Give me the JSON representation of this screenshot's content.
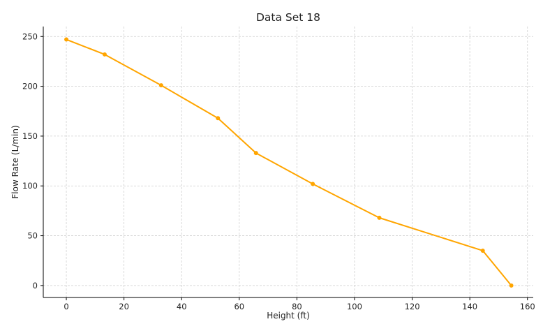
{
  "chart_data": {
    "type": "line",
    "title": "Data Set 18",
    "xlabel": "Height (ft)",
    "ylabel": "Flow Rate (L/min)",
    "xlim": [
      -8,
      162
    ],
    "ylim": [
      -12,
      260
    ],
    "xticks": [
      0,
      20,
      40,
      60,
      80,
      100,
      120,
      140,
      160
    ],
    "yticks": [
      0,
      50,
      100,
      150,
      200,
      250
    ],
    "grid": true,
    "series": [
      {
        "color": "#FFA500",
        "x": [
          0,
          13.3,
          32.9,
          52.6,
          65.8,
          85.5,
          108.6,
          144.5,
          154.4
        ],
        "y": [
          247,
          232,
          201,
          168,
          133,
          102,
          68,
          35,
          0
        ]
      }
    ]
  }
}
